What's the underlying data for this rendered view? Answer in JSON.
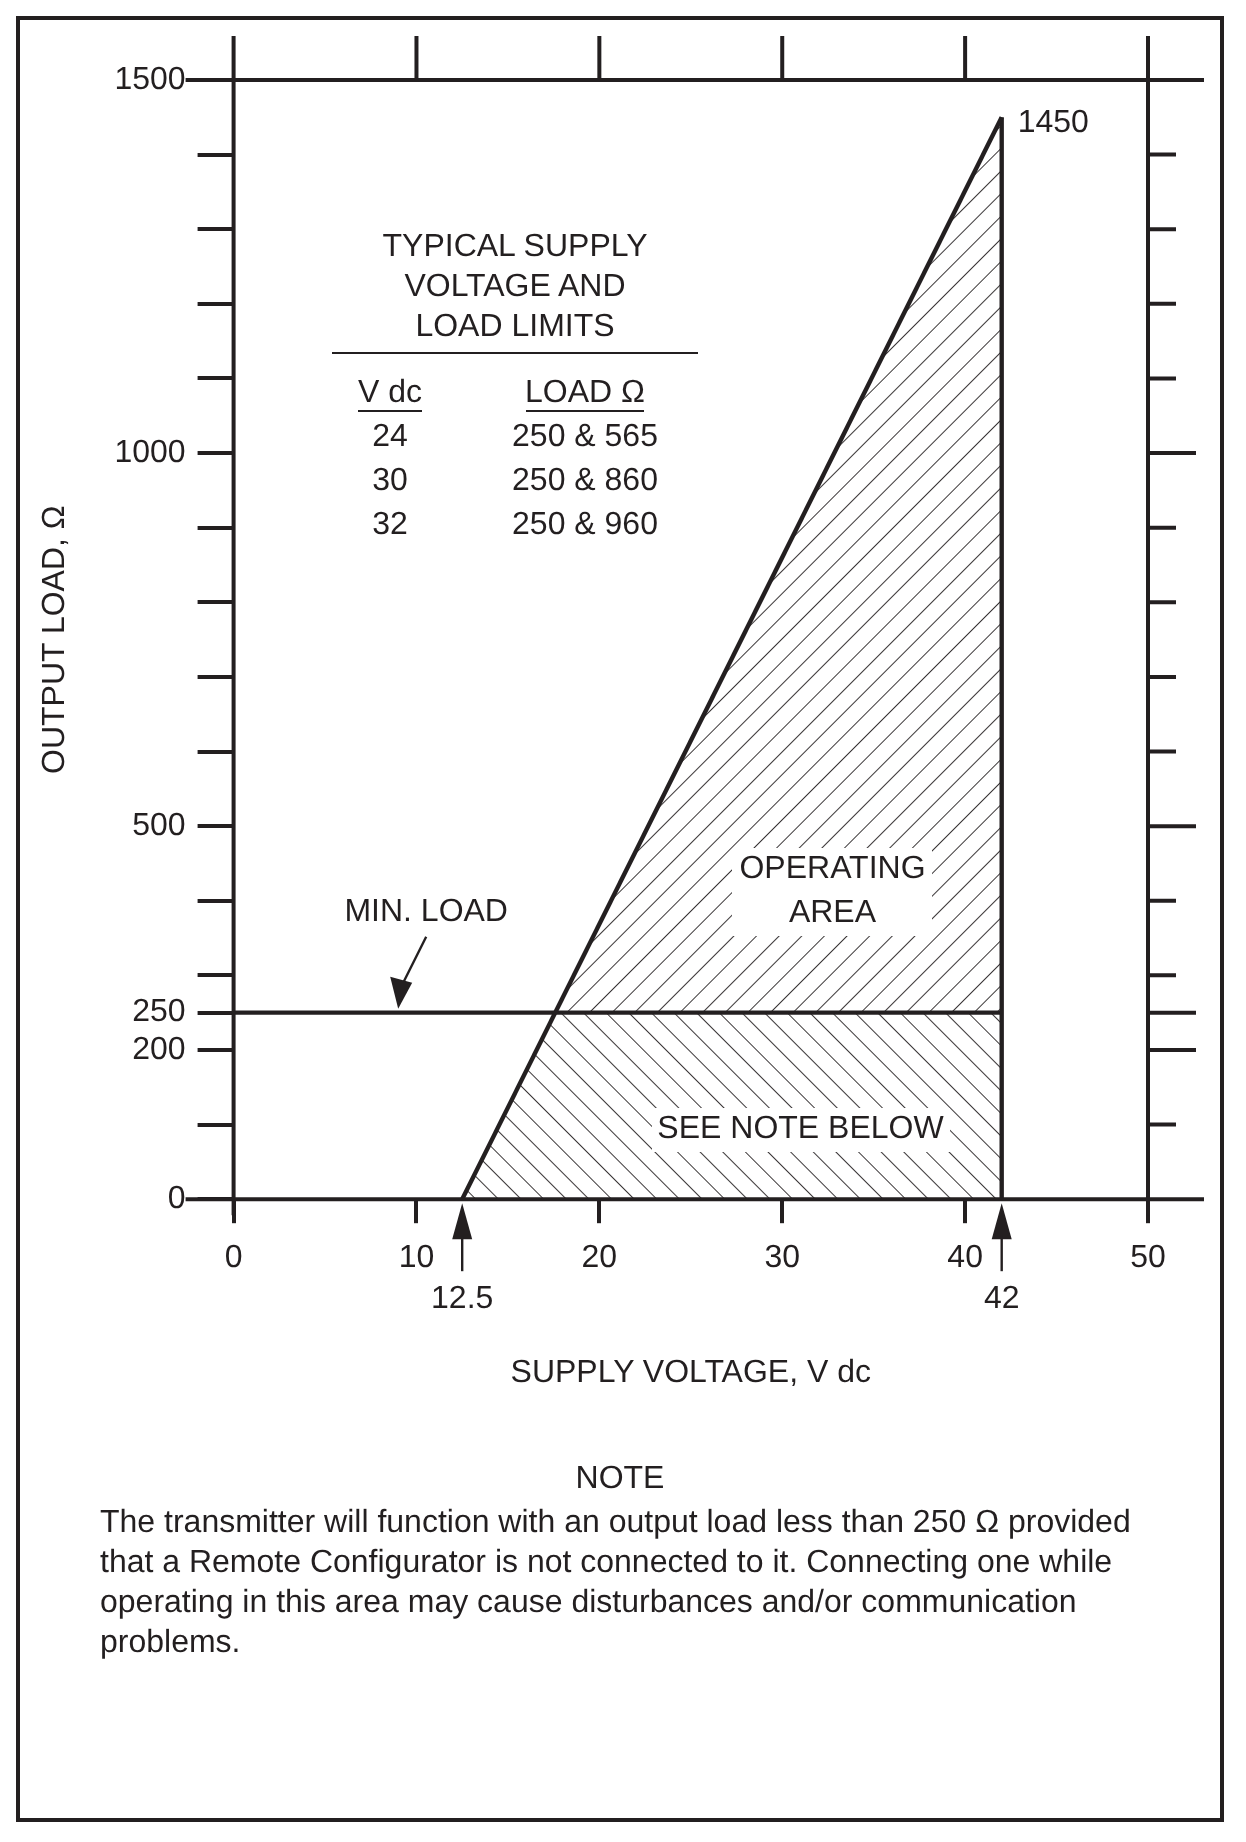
{
  "chart_data": {
    "type": "line",
    "xlabel": "SUPPLY VOLTAGE, V dc",
    "ylabel": "OUTPUT LOAD, Ω",
    "series": [
      {
        "color": "#231f20",
        "x": [
          12.5,
          42
        ],
        "values": [
          0,
          1450
        ]
      },
      {
        "color": "#231f20",
        "x": [
          42,
          42
        ],
        "values": [
          0,
          1450
        ]
      },
      {
        "color": "#231f20",
        "x": [
          0,
          42
        ],
        "values": [
          250,
          250
        ]
      }
    ],
    "xlim": [
      0,
      50
    ],
    "xticks": [
      0,
      10,
      20,
      30,
      40,
      50
    ],
    "ylim": [
      0,
      1500
    ],
    "yticks": [
      0,
      {
        "value": 100,
        "label": null
      },
      200,
      250,
      {
        "value": 300,
        "label": null
      },
      {
        "value": 400,
        "label": null
      },
      500,
      {
        "value": 600,
        "label": null
      },
      {
        "value": 700,
        "label": null
      },
      {
        "value": 800,
        "label": null
      },
      {
        "value": 900,
        "label": null
      },
      1000,
      {
        "value": 1100,
        "label": null
      },
      {
        "value": 1200,
        "label": null
      },
      {
        "value": 1300,
        "label": null
      },
      {
        "value": 1400,
        "label": null
      },
      1500
    ],
    "bands": [
      {
        "axis": "y",
        "from": 0,
        "to": 250,
        "label": "SEE NOTE BELOW"
      }
    ],
    "grid": false,
    "legend": false,
    "marker": "none",
    "line_style": "solid",
    "annotations": [
      "TYPICAL SUPPLY VOLTAGE AND LOAD LIMITS",
      "V dc",
      "LOAD Ω",
      "24",
      "250 & 565",
      "30",
      "250 & 860",
      "32",
      "250 & 960",
      {
        "text": "1450",
        "x": 42,
        "y": 1450
      },
      {
        "text": "12.5",
        "x": 12.5,
        "y": 0
      },
      {
        "text": "42",
        "x": 42,
        "y": 0
      },
      {
        "text": "MIN. LOAD",
        "x": 9,
        "y": 250
      },
      "OPERATING AREA",
      "NOTE",
      "The transmitter will function with an output load less than 250 Ω provided that a Remote Configurator is not connected to it. Connecting one while operating in this area may cause disturbances and/or communication problems."
    ]
  }
}
